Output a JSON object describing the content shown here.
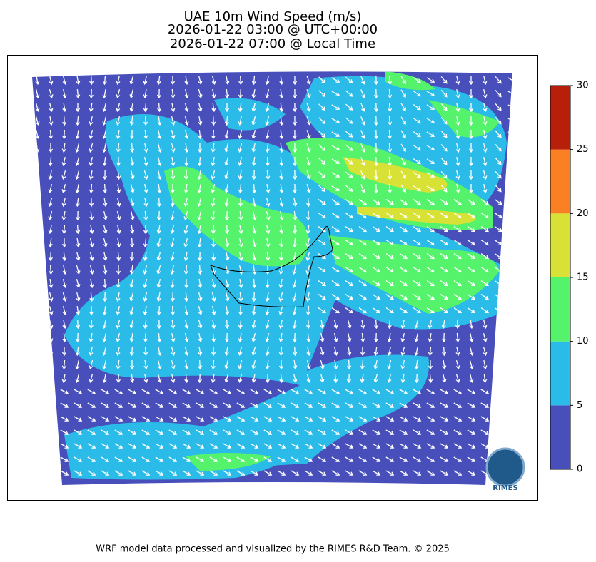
{
  "title_lines": [
    "UAE 10m Wind Speed (m/s)",
    "2026-01-22 03:00 @ UTC+00:00",
    "2026-01-22 07:00 @ Local Time"
  ],
  "colorbar": {
    "ticks": [
      0,
      5,
      10,
      15,
      20,
      25,
      30
    ],
    "colors": [
      "#484fbb",
      "#2bbbe8",
      "#55f36b",
      "#d8e236",
      "#fb8024",
      "#b81f0b"
    ]
  },
  "logo": "RIMES",
  "footer": "WRF model data processed and visualized by the RIMES R&D Team. © 2025"
}
